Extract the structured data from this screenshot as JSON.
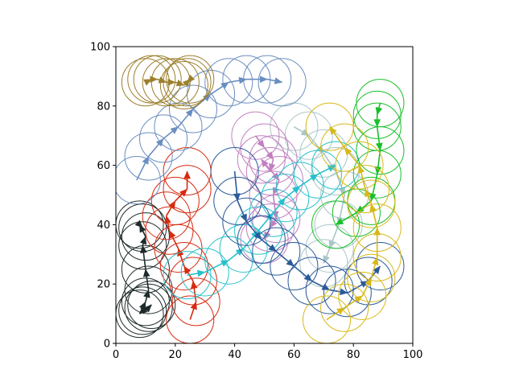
{
  "chart_data": {
    "type": "scatter",
    "subtype": "trajectories with circles and arrows",
    "xlim": [
      0,
      100
    ],
    "ylim": [
      0,
      100
    ],
    "grid": false,
    "legend": "none",
    "x_ticks": [
      0,
      20,
      40,
      60,
      80,
      100
    ],
    "y_ticks": [
      0,
      20,
      40,
      60,
      80,
      100
    ],
    "x_tick_labels": [
      "0",
      "20",
      "40",
      "60",
      "80",
      "100"
    ],
    "y_tick_labels": [
      "0",
      "20",
      "40",
      "60",
      "80",
      "100"
    ],
    "circle_radius": 8,
    "series": [
      {
        "color": "#1f2a2a",
        "points": [
          [
            9,
            11
          ],
          [
            11,
            12
          ],
          [
            12,
            13
          ],
          [
            8,
            10
          ],
          [
            10,
            14
          ],
          [
            11,
            18
          ],
          [
            10,
            25
          ],
          [
            9,
            33
          ],
          [
            10,
            36
          ],
          [
            8,
            40
          ],
          [
            9,
            39
          ]
        ]
      },
      {
        "color": "#d62a10",
        "points": [
          [
            25,
            8
          ],
          [
            27,
            14
          ],
          [
            26,
            21
          ],
          [
            23,
            26
          ],
          [
            21,
            32
          ],
          [
            18,
            38
          ],
          [
            17,
            43
          ],
          [
            20,
            48
          ],
          [
            24,
            52
          ],
          [
            24,
            58
          ]
        ]
      },
      {
        "color": "#a9c7c7",
        "points": [
          [
            60,
            73
          ],
          [
            65,
            70
          ],
          [
            70,
            64
          ],
          [
            74,
            58
          ],
          [
            77,
            50
          ],
          [
            75,
            40
          ],
          [
            72,
            32
          ],
          [
            70,
            27
          ]
        ]
      },
      {
        "color": "#c080c0",
        "points": [
          [
            47,
            70
          ],
          [
            50,
            66
          ],
          [
            53,
            62
          ],
          [
            52,
            58
          ],
          [
            49,
            62
          ],
          [
            55,
            55
          ],
          [
            53,
            50
          ],
          [
            54,
            42
          ],
          [
            52,
            39
          ],
          [
            50,
            35
          ]
        ]
      },
      {
        "color": "#26c0cc",
        "points": [
          [
            24,
            23
          ],
          [
            30,
            24
          ],
          [
            38,
            28
          ],
          [
            43,
            32
          ],
          [
            48,
            38
          ],
          [
            53,
            44
          ],
          [
            57,
            49
          ],
          [
            62,
            53
          ],
          [
            68,
            57
          ],
          [
            74,
            60
          ]
        ]
      },
      {
        "color": "#2a5a9a",
        "points": [
          [
            40,
            58
          ],
          [
            41,
            48
          ],
          [
            44,
            41
          ],
          [
            49,
            35
          ],
          [
            54,
            31
          ],
          [
            60,
            26
          ],
          [
            66,
            21
          ],
          [
            72,
            18
          ],
          [
            78,
            17
          ],
          [
            85,
            21
          ],
          [
            89,
            26
          ]
        ]
      },
      {
        "color": "#18bf28",
        "points": [
          [
            89,
            81
          ],
          [
            88,
            77
          ],
          [
            88,
            73
          ],
          [
            89,
            65
          ],
          [
            88,
            57
          ],
          [
            86,
            48
          ],
          [
            81,
            44
          ],
          [
            74,
            40
          ]
        ]
      },
      {
        "color": "#d8b818",
        "points": [
          [
            71,
            8
          ],
          [
            77,
            12
          ],
          [
            83,
            16
          ],
          [
            86,
            22
          ],
          [
            88,
            29
          ],
          [
            88,
            39
          ],
          [
            86,
            47
          ],
          [
            84,
            52
          ],
          [
            82,
            60
          ],
          [
            77,
            66
          ],
          [
            72,
            73
          ]
        ]
      },
      {
        "color": "#6a8ec0",
        "points": [
          [
            7,
            55
          ],
          [
            11,
            63
          ],
          [
            16,
            69
          ],
          [
            21,
            73
          ],
          [
            26,
            79
          ],
          [
            32,
            84
          ],
          [
            38,
            88
          ],
          [
            44,
            89
          ],
          [
            51,
            89
          ],
          [
            56,
            88
          ]
        ]
      },
      {
        "color": "#9c7f2c",
        "points": [
          [
            10,
            88
          ],
          [
            12,
            89
          ],
          [
            14,
            89
          ],
          [
            17,
            88
          ],
          [
            20,
            88
          ],
          [
            23,
            87
          ],
          [
            25,
            89
          ],
          [
            24,
            88
          ]
        ]
      }
    ]
  }
}
